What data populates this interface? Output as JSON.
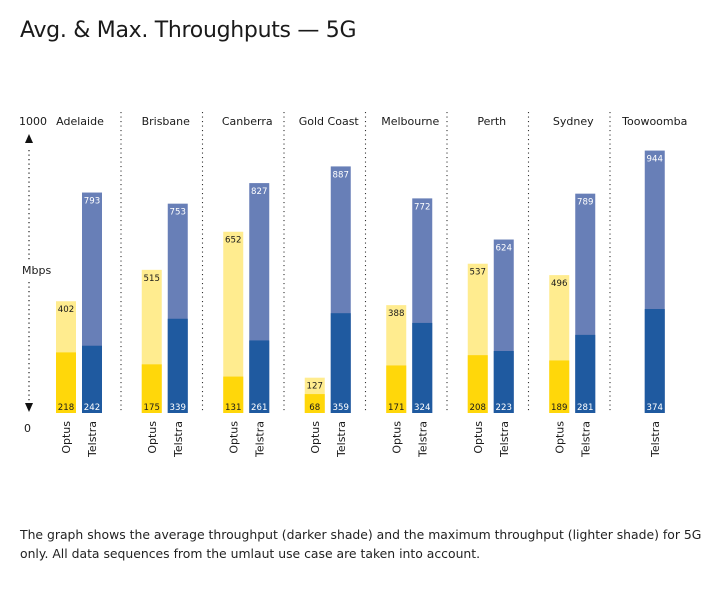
{
  "title": "Avg. & Max. Throughputs — 5G",
  "caption": "The graph shows the average throughput (darker shade) and the maximum throughput (lighter shade) for 5G only. All data sequences from the umlaut use case are taken into account.",
  "chart_data": {
    "type": "bar",
    "ylabel": "Mbps",
    "ylim": [
      0,
      1000
    ],
    "y_ticks": [
      "1000",
      "0"
    ],
    "categories": [
      "Adelaide",
      "Brisbane",
      "Canberra",
      "Gold Coast",
      "Melbourne",
      "Perth",
      "Sydney",
      "Toowoomba"
    ],
    "series": [
      {
        "name": "Optus",
        "colors": {
          "avg": "#FFD70A",
          "max": "#FFEC8F"
        },
        "avg": [
          218,
          175,
          131,
          68,
          171,
          208,
          189,
          null
        ],
        "max": [
          402,
          515,
          652,
          127,
          388,
          537,
          496,
          null
        ]
      },
      {
        "name": "Telstra",
        "colors": {
          "avg": "#1F5AA0",
          "max": "#687FB7"
        },
        "avg": [
          242,
          339,
          261,
          359,
          324,
          223,
          281,
          374
        ],
        "max": [
          793,
          753,
          827,
          887,
          772,
          624,
          789,
          944
        ]
      }
    ]
  }
}
